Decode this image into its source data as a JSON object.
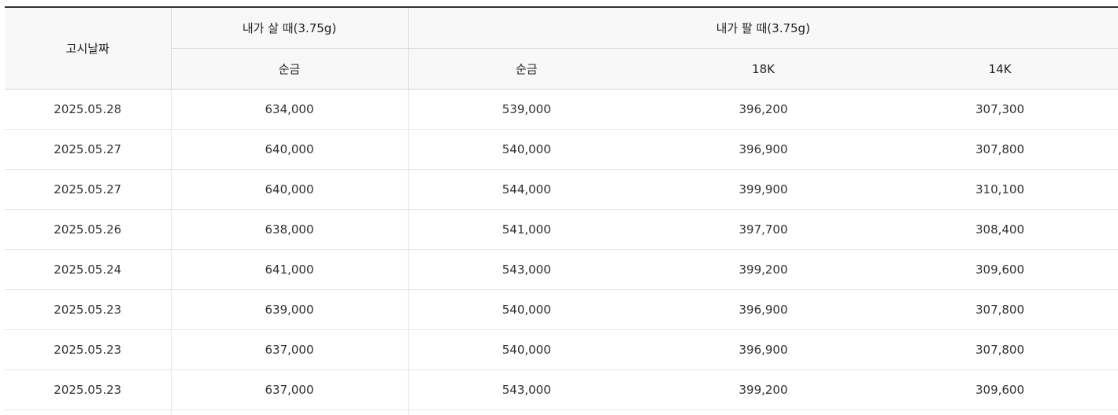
{
  "table": {
    "headers": {
      "date": "고시날짜",
      "buy_group": "내가 살 때(3.75g)",
      "sell_group": "내가 팔 때(3.75g)",
      "buy_pure": "순금",
      "sell_pure": "순금",
      "sell_18k": "18K",
      "sell_14k": "14K"
    },
    "rows": [
      {
        "date": "2025.05.28",
        "buy_pure": "634,000",
        "sell_pure": "539,000",
        "sell_18k": "396,200",
        "sell_14k": "307,300"
      },
      {
        "date": "2025.05.27",
        "buy_pure": "640,000",
        "sell_pure": "540,000",
        "sell_18k": "396,900",
        "sell_14k": "307,800"
      },
      {
        "date": "2025.05.27",
        "buy_pure": "640,000",
        "sell_pure": "544,000",
        "sell_18k": "399,900",
        "sell_14k": "310,100"
      },
      {
        "date": "2025.05.26",
        "buy_pure": "638,000",
        "sell_pure": "541,000",
        "sell_18k": "397,700",
        "sell_14k": "308,400"
      },
      {
        "date": "2025.05.24",
        "buy_pure": "641,000",
        "sell_pure": "543,000",
        "sell_18k": "399,200",
        "sell_14k": "309,600"
      },
      {
        "date": "2025.05.23",
        "buy_pure": "639,000",
        "sell_pure": "540,000",
        "sell_18k": "396,900",
        "sell_14k": "307,800"
      },
      {
        "date": "2025.05.23",
        "buy_pure": "637,000",
        "sell_pure": "540,000",
        "sell_18k": "396,900",
        "sell_14k": "307,800"
      },
      {
        "date": "2025.05.23",
        "buy_pure": "637,000",
        "sell_pure": "543,000",
        "sell_18k": "399,200",
        "sell_14k": "309,600"
      }
    ]
  },
  "colors": {
    "header_bg": "#f8f8f8",
    "top_border": "#333333",
    "grid_line": "#e5e5e5",
    "text": "#333333"
  }
}
